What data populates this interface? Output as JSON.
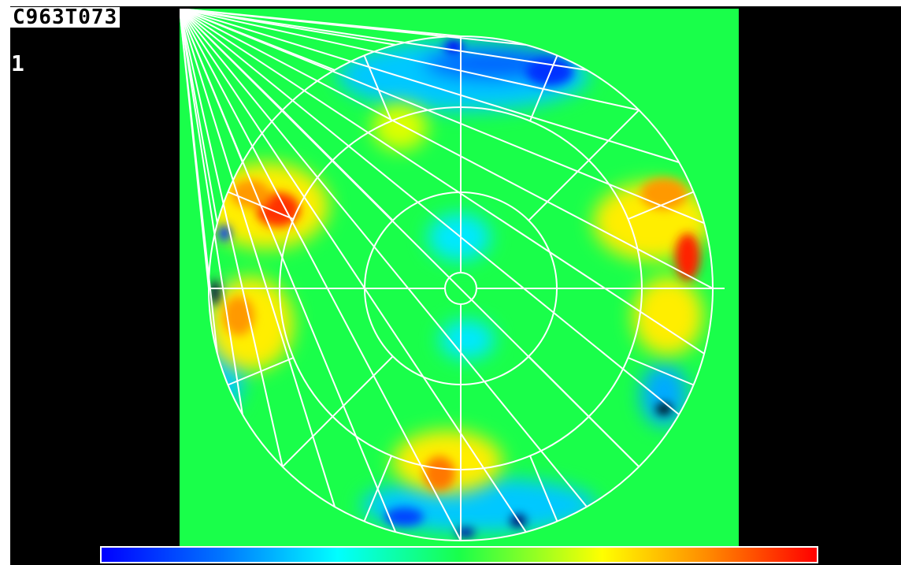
{
  "title": "C963T073",
  "frame_index": "1",
  "colors": {
    "background": "#000000",
    "plot_fill": "#19ff4a",
    "grid": "#ffffff",
    "colormap": [
      "#0000ff",
      "#0077ff",
      "#00ffff",
      "#19ff4a",
      "#ffff00",
      "#ff8800",
      "#ff0000"
    ]
  },
  "polar_grid": {
    "rings": 4,
    "spokes_per_ring": [
      4,
      8,
      16,
      24
    ]
  },
  "features": [
    {
      "name": "hot-spot-upper-left",
      "level": "red"
    },
    {
      "name": "hot-spot-right",
      "level": "red"
    },
    {
      "name": "hot-spot-lower-center",
      "level": "orange"
    },
    {
      "name": "cold-spot-top",
      "level": "blue"
    },
    {
      "name": "cold-spot-bottom",
      "level": "blue"
    },
    {
      "name": "cold-spot-left-edge",
      "level": "black"
    },
    {
      "name": "cold-spot-lower-right",
      "level": "black"
    }
  ]
}
